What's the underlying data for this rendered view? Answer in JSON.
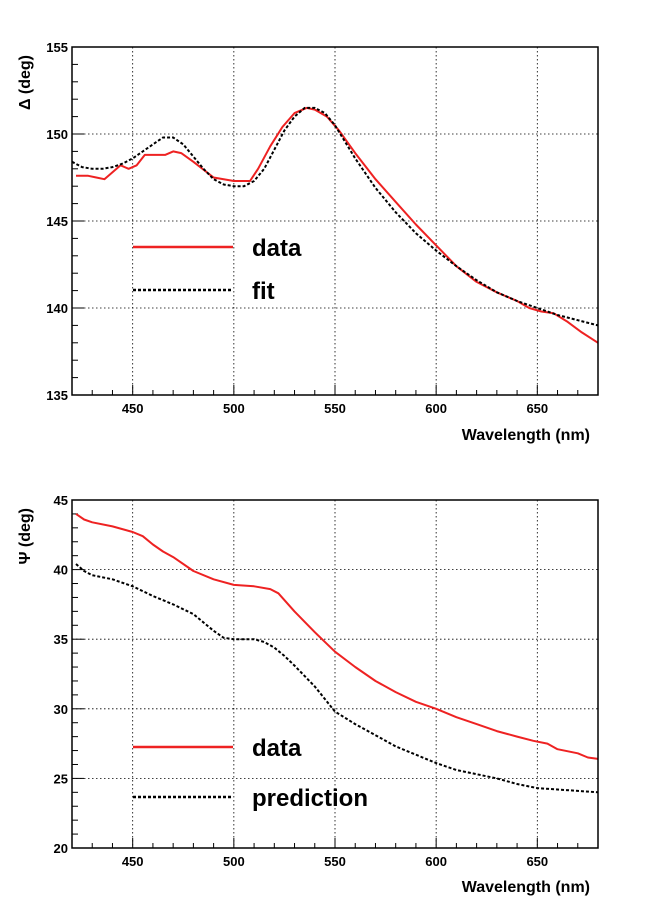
{
  "chart_data": [
    {
      "type": "line",
      "title": "",
      "xlabel": "Wavelength (nm)",
      "ylabel": "Δ (deg)",
      "xlim": [
        420,
        680
      ],
      "ylim": [
        135,
        155
      ],
      "xticks": [
        450,
        500,
        550,
        600,
        650
      ],
      "yticks": [
        135,
        140,
        145,
        150,
        155
      ],
      "grid": true,
      "legend_position": "middle-left",
      "series": [
        {
          "name": "data",
          "color": "#ee2222",
          "style": "solid",
          "x": [
            422,
            428,
            432,
            436,
            440,
            444,
            448,
            452,
            456,
            460,
            466,
            470,
            474,
            480,
            490,
            500,
            508,
            512,
            518,
            524,
            530,
            536,
            540,
            546,
            552,
            560,
            570,
            580,
            590,
            600,
            610,
            620,
            630,
            640,
            646,
            652,
            658,
            665,
            672,
            680
          ],
          "y": [
            147.6,
            147.6,
            147.5,
            147.4,
            147.8,
            148.2,
            148.0,
            148.2,
            148.8,
            148.8,
            148.8,
            149.0,
            148.9,
            148.4,
            147.5,
            147.3,
            147.3,
            148.0,
            149.3,
            150.4,
            151.2,
            151.5,
            151.4,
            151.0,
            150.2,
            148.9,
            147.4,
            146.1,
            144.8,
            143.6,
            142.4,
            141.5,
            140.9,
            140.4,
            140.0,
            139.8,
            139.7,
            139.2,
            138.6,
            138.0
          ]
        },
        {
          "name": "fit",
          "color": "#000000",
          "style": "dotted",
          "x": [
            420,
            425,
            430,
            435,
            440,
            445,
            450,
            455,
            460,
            465,
            470,
            475,
            480,
            485,
            490,
            495,
            500,
            505,
            510,
            515,
            520,
            525,
            530,
            535,
            540,
            545,
            550,
            560,
            570,
            580,
            590,
            600,
            610,
            620,
            630,
            640,
            650,
            660,
            670,
            680
          ],
          "y": [
            148.4,
            148.1,
            148.0,
            148.0,
            148.1,
            148.3,
            148.6,
            149.0,
            149.4,
            149.8,
            149.8,
            149.4,
            148.7,
            148.0,
            147.4,
            147.1,
            147.0,
            147.0,
            147.3,
            148.0,
            149.1,
            150.2,
            151.0,
            151.5,
            151.5,
            151.2,
            150.5,
            148.6,
            146.9,
            145.5,
            144.3,
            143.3,
            142.4,
            141.6,
            140.9,
            140.4,
            140.0,
            139.6,
            139.3,
            139.0
          ]
        }
      ]
    },
    {
      "type": "line",
      "title": "",
      "xlabel": "Wavelength (nm)",
      "ylabel": "Ψ (deg)",
      "xlim": [
        420,
        680
      ],
      "ylim": [
        20,
        45
      ],
      "xticks": [
        450,
        500,
        550,
        600,
        650
      ],
      "yticks": [
        20,
        25,
        30,
        35,
        40,
        45
      ],
      "grid": true,
      "legend_position": "lower-left",
      "series": [
        {
          "name": "data",
          "color": "#ee2222",
          "style": "solid",
          "x": [
            422,
            426,
            430,
            440,
            450,
            455,
            460,
            465,
            470,
            480,
            490,
            500,
            510,
            518,
            522,
            530,
            540,
            550,
            560,
            570,
            580,
            590,
            600,
            610,
            620,
            630,
            640,
            648,
            655,
            660,
            670,
            675,
            680
          ],
          "y": [
            44.0,
            43.6,
            43.4,
            43.1,
            42.7,
            42.4,
            41.8,
            41.3,
            40.9,
            39.9,
            39.3,
            38.9,
            38.8,
            38.6,
            38.3,
            37.0,
            35.5,
            34.1,
            33.0,
            32.0,
            31.2,
            30.5,
            30.0,
            29.4,
            28.9,
            28.4,
            28.0,
            27.7,
            27.5,
            27.1,
            26.8,
            26.5,
            26.4
          ]
        },
        {
          "name": "prediction",
          "color": "#000000",
          "style": "dotted",
          "x": [
            422,
            426,
            430,
            440,
            450,
            460,
            470,
            480,
            490,
            495,
            500,
            510,
            515,
            520,
            525,
            530,
            540,
            550,
            560,
            570,
            580,
            590,
            600,
            610,
            620,
            630,
            640,
            650,
            660,
            670,
            680
          ],
          "y": [
            40.4,
            39.9,
            39.6,
            39.3,
            38.8,
            38.1,
            37.5,
            36.8,
            35.6,
            35.1,
            35.0,
            35.0,
            34.8,
            34.4,
            33.8,
            33.1,
            31.6,
            29.8,
            28.9,
            28.1,
            27.3,
            26.7,
            26.1,
            25.6,
            25.3,
            25.0,
            24.6,
            24.3,
            24.2,
            24.1,
            24.0
          ]
        }
      ]
    }
  ]
}
